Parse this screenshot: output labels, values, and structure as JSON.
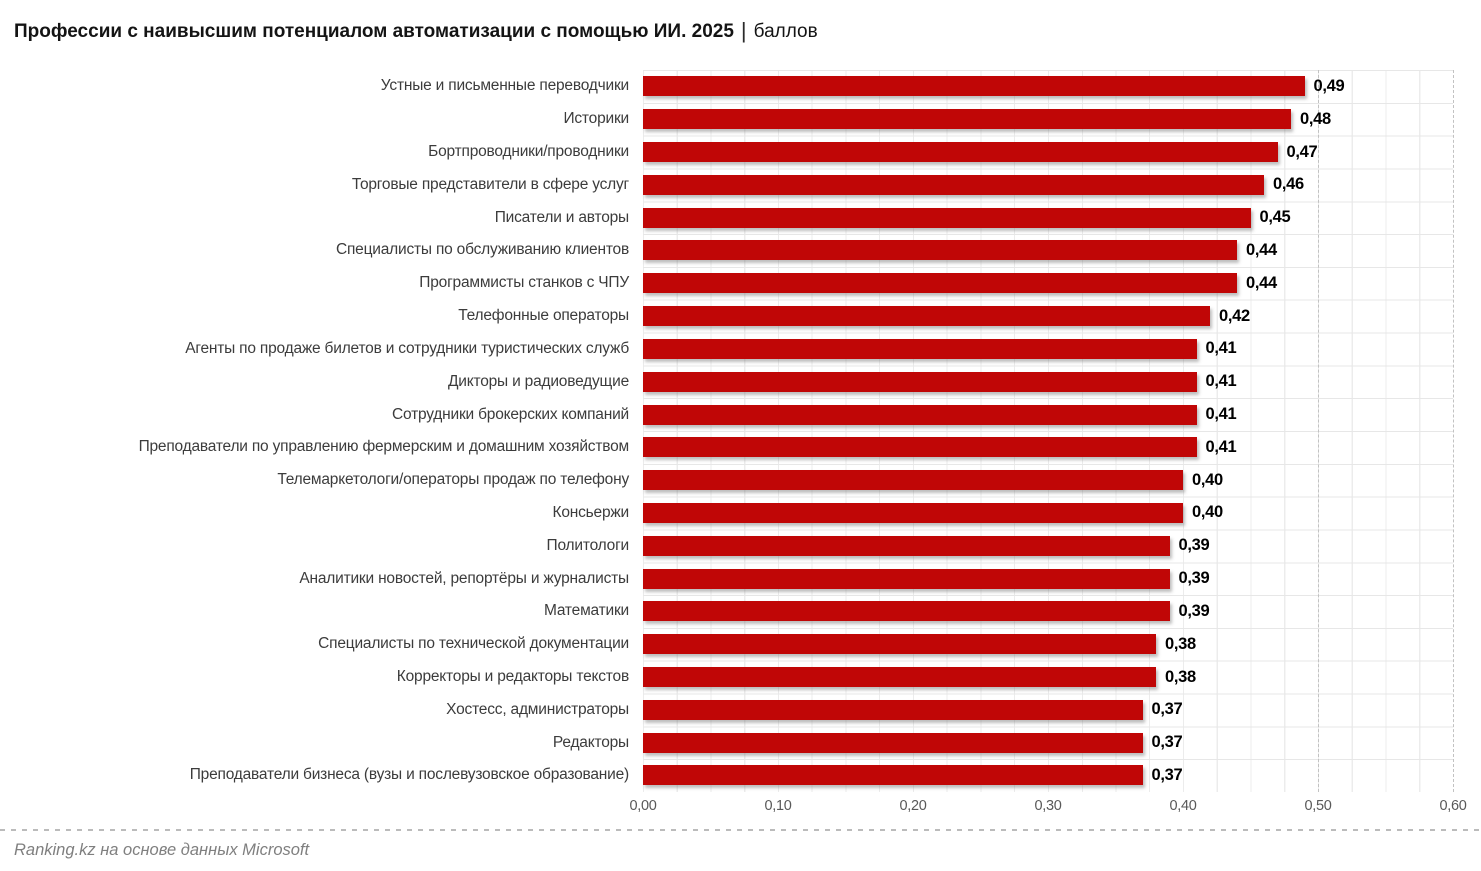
{
  "title": {
    "bold": "Профессии с наивысшим потенциалом автоматизации с помощью ИИ. 2025",
    "separator": "|",
    "suffix": "баллов"
  },
  "footer": {
    "source": "Ranking.kz на основе данных Microsoft"
  },
  "colors": {
    "bar": "#c00606",
    "title_text": "#141414",
    "category_text": "#3c3c3c",
    "value_text": "#000000",
    "tick_text": "#595959",
    "footer_text": "#7f7f7f",
    "grid_minor": "#ececec",
    "grid_major_dashed": "#c2c2c2",
    "row_line": "#e7e7e7"
  },
  "chart_data": {
    "type": "bar",
    "orientation": "horizontal",
    "title": "Профессии с наивысшим потенциалом автоматизации с помощью ИИ. 2025 | баллов",
    "xlabel": "",
    "ylabel": "",
    "legend": "none",
    "grid": "solid minor vertical lines every 0.025, dashed vertical lines at 0.50 and 0.60, solid horizontal row lines",
    "xlim": [
      0,
      0.6
    ],
    "x_tick_labels": [
      "0,00",
      "0,10",
      "0,20",
      "0,30",
      "0,40",
      "0,50",
      "0,60"
    ],
    "x_tick_values": [
      0,
      0.1,
      0.2,
      0.3,
      0.4,
      0.5,
      0.6
    ],
    "dashed_gridline_values": [
      0.5,
      0.6
    ],
    "categories": [
      "Устные и письменные переводчики",
      "Историки",
      "Бортпроводники/проводники",
      "Торговые представители в сфере услуг",
      "Писатели и авторы",
      "Специалисты по обслуживанию клиентов",
      "Программисты станков с ЧПУ",
      "Телефонные операторы",
      "Агенты по продаже билетов и сотрудники туристических служб",
      "Дикторы и радиоведущие",
      "Сотрудники брокерских компаний",
      "Преподаватели по управлению фермерским и домашним хозяйством",
      "Телемаркетологи/операторы продаж по телефону",
      "Консьержи",
      "Политологи",
      "Аналитики новостей, репортёры и журналисты",
      "Математики",
      "Специалисты по технической документации",
      "Корректоры и редакторы текстов",
      "Хостесс, администраторы",
      "Редакторы",
      "Преподаватели бизнеса (вузы и послевузовское образование)"
    ],
    "values": [
      0.49,
      0.48,
      0.47,
      0.46,
      0.45,
      0.44,
      0.44,
      0.42,
      0.41,
      0.41,
      0.41,
      0.41,
      0.4,
      0.4,
      0.39,
      0.39,
      0.39,
      0.38,
      0.38,
      0.37,
      0.37,
      0.37
    ],
    "value_labels": [
      "0,49",
      "0,48",
      "0,47",
      "0,46",
      "0,45",
      "0,44",
      "0,44",
      "0,42",
      "0,41",
      "0,41",
      "0,41",
      "0,41",
      "0,40",
      "0,40",
      "0,39",
      "0,39",
      "0,39",
      "0,38",
      "0,38",
      "0,37",
      "0,37",
      "0,37"
    ]
  }
}
